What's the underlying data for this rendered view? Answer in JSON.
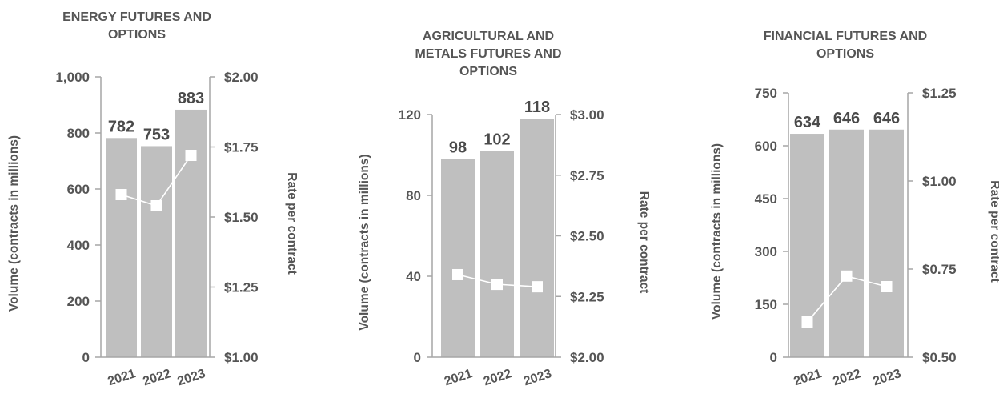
{
  "colors": {
    "bar": "#bfbfbf",
    "axis": "#a6a6a6",
    "text": "#555555",
    "line": "#ffffff",
    "marker": "#ffffff"
  },
  "chart_data": [
    {
      "type": "bar",
      "title_lines": [
        "ENERGY FUTURES AND",
        "OPTIONS"
      ],
      "categories": [
        "2021",
        "2022",
        "2023"
      ],
      "values": [
        782,
        753,
        883
      ],
      "value_labels": [
        "782",
        "753",
        "883"
      ],
      "ylabel": "Volume (contracts in millions)",
      "ylim": [
        0,
        1000
      ],
      "yticks": [
        0,
        200,
        400,
        600,
        800,
        1000
      ],
      "ytick_labels": [
        "0",
        "200",
        "400",
        "600",
        "800",
        "1,000"
      ],
      "y2label": "Rate per contract",
      "y2lim": [
        1.0,
        2.0
      ],
      "y2ticks": [
        1.0,
        1.25,
        1.5,
        1.75,
        2.0
      ],
      "y2tick_labels": [
        "$1.00",
        "$1.25",
        "$1.50",
        "$1.75",
        "$2.00"
      ],
      "rate_values": [
        1.58,
        1.54,
        1.72
      ],
      "grid": false
    },
    {
      "type": "bar",
      "title_lines": [
        "AGRICULTURAL AND",
        "METALS FUTURES AND",
        "OPTIONS"
      ],
      "categories": [
        "2021",
        "2022",
        "2023"
      ],
      "values": [
        98,
        102,
        118
      ],
      "value_labels": [
        "98",
        "102",
        "118"
      ],
      "ylabel": "Volume (contracts in millions)",
      "ylim": [
        0,
        120
      ],
      "yticks": [
        0,
        40,
        80,
        120
      ],
      "ytick_labels": [
        "0",
        "40",
        "80",
        "120"
      ],
      "y2label": "Rate per contract",
      "y2lim": [
        2.0,
        3.0
      ],
      "y2ticks": [
        2.0,
        2.25,
        2.5,
        2.75,
        3.0
      ],
      "y2tick_labels": [
        "$2.00",
        "$2.25",
        "$2.50",
        "$2.75",
        "$3.00"
      ],
      "rate_values": [
        2.34,
        2.3,
        2.29
      ],
      "grid": false
    },
    {
      "type": "bar",
      "title_lines": [
        "FINANCIAL FUTURES AND",
        "OPTIONS"
      ],
      "categories": [
        "2021",
        "2022",
        "2023"
      ],
      "values": [
        634,
        646,
        646
      ],
      "value_labels": [
        "634",
        "646",
        "646"
      ],
      "ylabel": "Volume (contracts in millions)",
      "ylim": [
        0,
        750
      ],
      "yticks": [
        0,
        150,
        300,
        450,
        600,
        750
      ],
      "ytick_labels": [
        "0",
        "150",
        "300",
        "450",
        "600",
        "750"
      ],
      "y2label": "Rate per contract",
      "y2lim": [
        0.5,
        1.25
      ],
      "y2ticks": [
        0.5,
        0.75,
        1.0,
        1.25
      ],
      "y2tick_labels": [
        "$0.50",
        "$0.75",
        "$1.00",
        "$1.25"
      ],
      "rate_values": [
        0.6,
        0.73,
        0.7
      ],
      "grid": false
    }
  ]
}
